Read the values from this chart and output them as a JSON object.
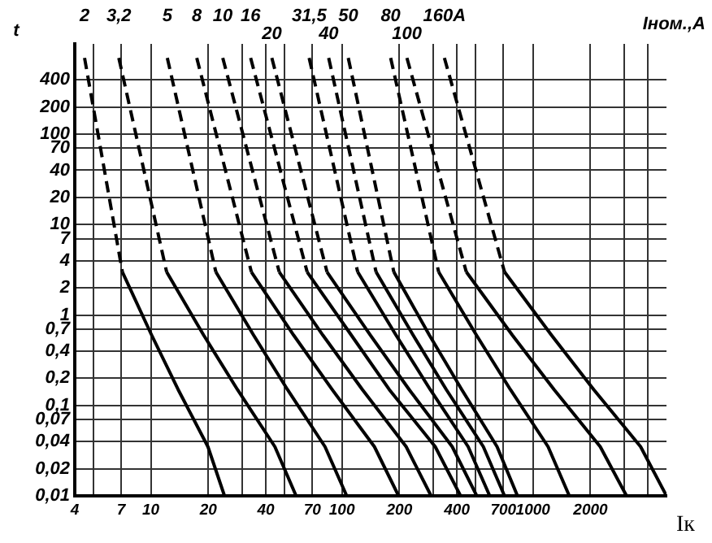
{
  "chart_data": {
    "type": "line",
    "log": "xy",
    "grid": true,
    "marker": "none",
    "xlabel": "Iк",
    "ylabel": "t",
    "legend_title": "Iном.,A",
    "xlim": [
      4,
      5000
    ],
    "ylim": [
      0.01,
      1000
    ],
    "xticks": [
      4,
      {
        "value": 5,
        "label": null
      },
      7,
      10,
      20,
      {
        "value": 30,
        "label": null
      },
      40,
      {
        "value": 50,
        "label": null
      },
      70,
      100,
      200,
      {
        "value": 300,
        "label": null
      },
      400,
      {
        "value": 500,
        "label": null
      },
      700,
      1000,
      2000,
      {
        "value": 3000,
        "label": null
      },
      {
        "value": 4000,
        "label": null
      }
    ],
    "yticks": [
      {
        "value": 0.01,
        "label": "0,01"
      },
      {
        "value": 0.02,
        "label": "0,02"
      },
      {
        "value": 0.04,
        "label": "0,04"
      },
      {
        "value": 0.07,
        "label": "0,07"
      },
      {
        "value": 0.1,
        "label": "0,1"
      },
      {
        "value": 0.2,
        "label": "0,2"
      },
      {
        "value": 0.4,
        "label": "0,4"
      },
      {
        "value": 0.7,
        "label": "0,7"
      },
      1,
      2,
      4,
      7,
      10,
      20,
      40,
      70,
      100,
      200,
      400
    ],
    "series": [
      {
        "name": "2",
        "color": "#000000",
        "line_style": "dashed",
        "x": [
          4.5,
          7.1
        ],
        "values": [
          700,
          3
        ]
      },
      {
        "color": "#000000",
        "line_style": "solid",
        "x": [
          7.1,
          10.1,
          13.9,
          19.9,
          24.3
        ],
        "values": [
          3,
          0.6,
          0.15,
          0.035,
          0.01
        ]
      },
      {
        "name": "3,2",
        "color": "#000000",
        "line_style": "dashed",
        "x": [
          6.8,
          12.1
        ],
        "values": [
          700,
          3
        ]
      },
      {
        "color": "#000000",
        "line_style": "solid",
        "x": [
          12.1,
          18.9,
          28.4,
          44.6,
          57.6
        ],
        "values": [
          3,
          0.6,
          0.15,
          0.035,
          0.01
        ]
      },
      {
        "name": "5",
        "color": "#000000",
        "line_style": "dashed",
        "x": [
          12.2,
          21.9
        ],
        "values": [
          700,
          3
        ]
      },
      {
        "color": "#000000",
        "line_style": "solid",
        "x": [
          21.9,
          34.5,
          51.9,
          81.6,
          106
        ],
        "values": [
          3,
          0.6,
          0.15,
          0.035,
          0.01
        ]
      },
      {
        "name": "8",
        "color": "#000000",
        "line_style": "dashed",
        "x": [
          17.4,
          33.6
        ],
        "values": [
          700,
          3
        ]
      },
      {
        "color": "#000000",
        "line_style": "solid",
        "x": [
          33.6,
          55.9,
          88.9,
          148,
          198
        ],
        "values": [
          3,
          0.6,
          0.15,
          0.035,
          0.01
        ]
      },
      {
        "name": "10",
        "color": "#000000",
        "line_style": "dashed",
        "x": [
          23.8,
          47
        ],
        "values": [
          700,
          3
        ]
      },
      {
        "color": "#000000",
        "line_style": "solid",
        "x": [
          47,
          79.5,
          128,
          217,
          293
        ],
        "values": [
          3,
          0.6,
          0.15,
          0.035,
          0.01
        ]
      },
      {
        "name": "16",
        "color": "#000000",
        "line_style": "dashed",
        "x": [
          33.3,
          65.8
        ],
        "values": [
          700,
          3
        ]
      },
      {
        "color": "#000000",
        "line_style": "solid",
        "x": [
          65.8,
          112,
          177,
          308,
          418
        ],
        "values": [
          3,
          0.6,
          0.15,
          0.035,
          0.01
        ]
      },
      {
        "name": "20",
        "color": "#000000",
        "line_style": "dashed",
        "x": [
          43,
          83.6
        ],
        "values": [
          700,
          3
        ]
      },
      {
        "color": "#000000",
        "line_style": "solid",
        "x": [
          83.6,
          141,
          225,
          378,
          508
        ],
        "values": [
          3,
          0.6,
          0.15,
          0.035,
          0.01
        ]
      },
      {
        "name": "31,5",
        "color": "#000000",
        "line_style": "dashed",
        "x": [
          67.4,
          121
        ],
        "values": [
          700,
          3
        ]
      },
      {
        "color": "#000000",
        "line_style": "solid",
        "x": [
          121,
          192,
          290,
          458,
          594
        ],
        "values": [
          3,
          0.6,
          0.15,
          0.035,
          0.01
        ]
      },
      {
        "name": "40",
        "color": "#000000",
        "line_style": "dashed",
        "x": [
          85.3,
          151
        ],
        "values": [
          700,
          3
        ]
      },
      {
        "color": "#000000",
        "line_style": "solid",
        "x": [
          151,
          236,
          352,
          550,
          710
        ],
        "values": [
          3,
          0.6,
          0.15,
          0.035,
          0.01
        ]
      },
      {
        "name": "50",
        "color": "#000000",
        "line_style": "dashed",
        "x": [
          108,
          187
        ],
        "values": [
          700,
          3
        ]
      },
      {
        "color": "#000000",
        "line_style": "solid",
        "x": [
          187,
          287,
          424,
          649,
          830
        ],
        "values": [
          3,
          0.6,
          0.15,
          0.035,
          0.01
        ]
      },
      {
        "name": "80",
        "color": "#000000",
        "line_style": "dashed",
        "x": [
          180,
          321
        ],
        "values": [
          700,
          3
        ]
      },
      {
        "color": "#000000",
        "line_style": "solid",
        "x": [
          321,
          506,
          762,
          1200,
          1550
        ],
        "values": [
          3,
          0.6,
          0.15,
          0.035,
          0.01
        ]
      },
      {
        "name": "100",
        "color": "#000000",
        "line_style": "dashed",
        "x": [
          219,
          448
        ],
        "values": [
          700,
          3
        ]
      },
      {
        "color": "#000000",
        "line_style": "solid",
        "x": [
          448,
          780,
          1290,
          2250,
          3090
        ],
        "values": [
          3,
          0.6,
          0.15,
          0.035,
          0.01
        ]
      },
      {
        "name": "160A",
        "color": "#000000",
        "line_style": "dashed",
        "x": [
          344,
          710
        ],
        "values": [
          700,
          3
        ]
      },
      {
        "color": "#000000",
        "line_style": "solid",
        "x": [
          710,
          1250,
          2080,
          3660,
          5000
        ],
        "values": [
          3,
          0.6,
          0.15,
          0.035,
          0.01
        ]
      }
    ]
  }
}
